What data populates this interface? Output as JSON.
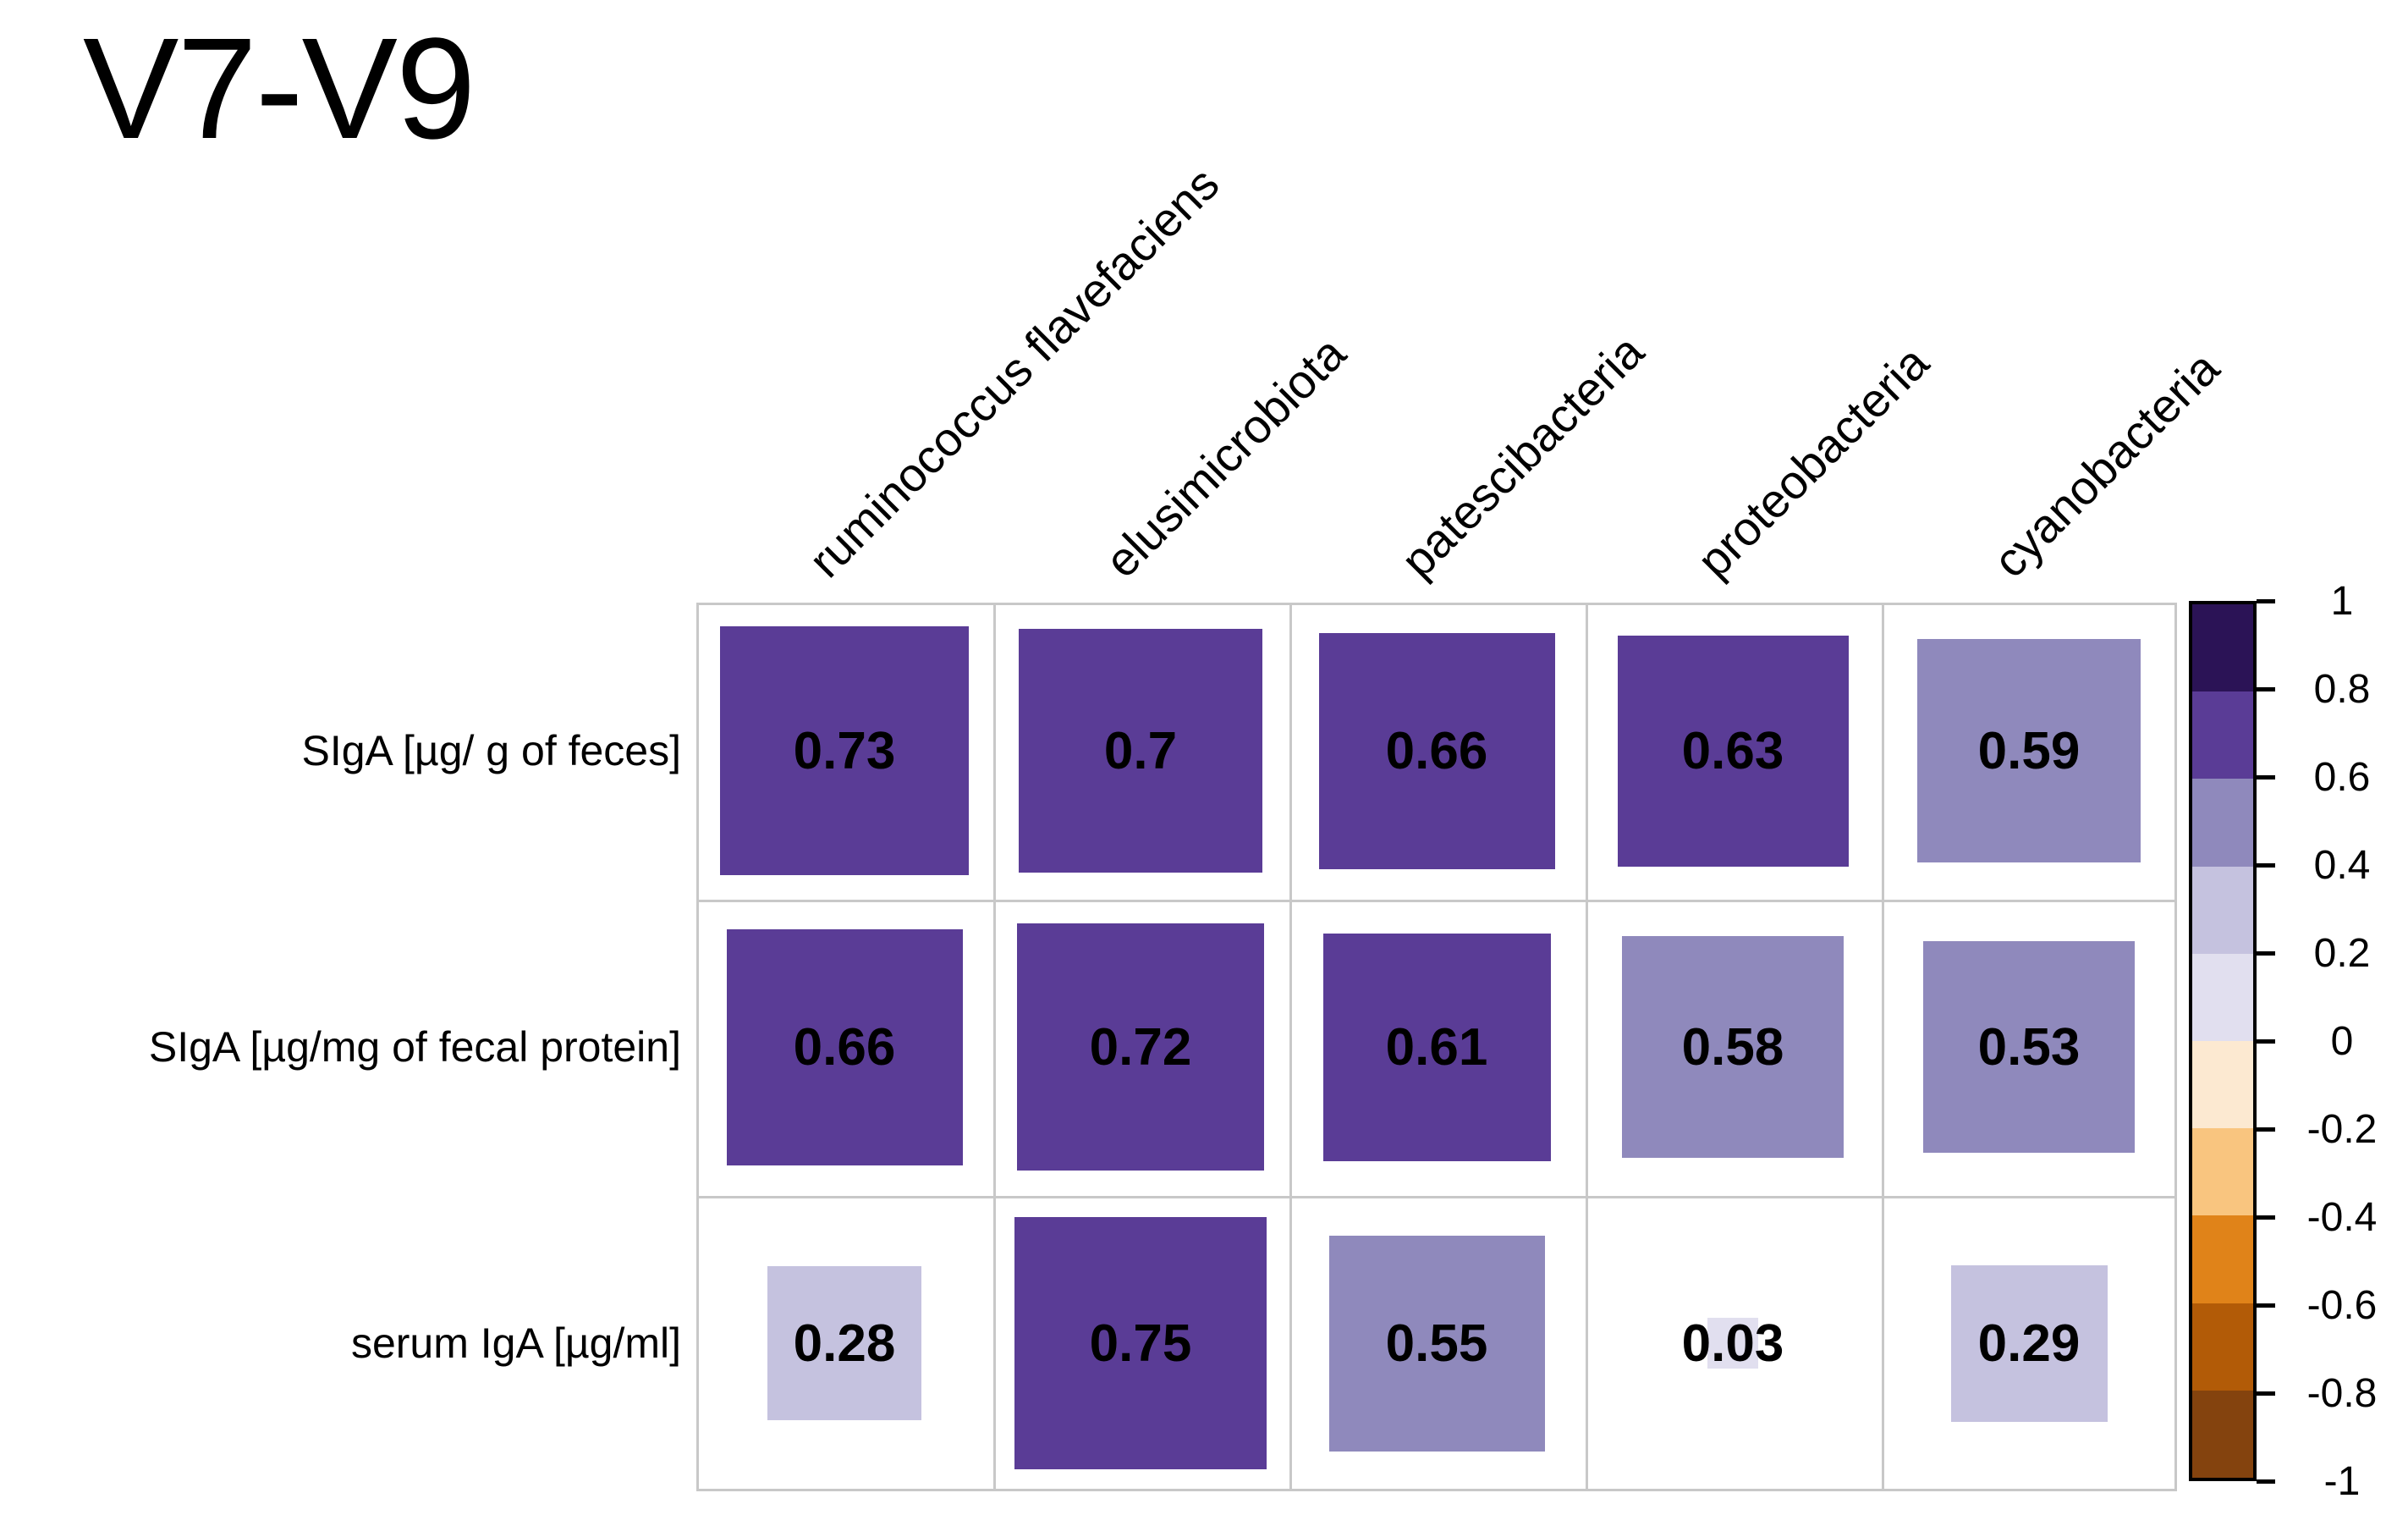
{
  "title": "V7-V9",
  "chart_data": {
    "type": "heatmap",
    "subtype": "correlation-matrix-squares",
    "title": "V7-V9",
    "rows": [
      "SIgA [µg/ g of feces]",
      "SIgA [µg/mg of fecal protein]",
      "serum IgA [µg/ml]"
    ],
    "columns": [
      "ruminococcus flavefaciens",
      "elusimicrobiota",
      "patescibacteria",
      "proteobacteria",
      "cyanobacteria"
    ],
    "values": [
      [
        0.73,
        0.7,
        0.66,
        0.63,
        0.59
      ],
      [
        0.66,
        0.72,
        0.61,
        0.58,
        0.53
      ],
      [
        0.28,
        0.75,
        0.55,
        0.03,
        0.29
      ]
    ],
    "value_labels": [
      [
        "0.73",
        "0.7",
        "0.66",
        "0.63",
        "0.59"
      ],
      [
        "0.66",
        "0.72",
        "0.61",
        "0.58",
        "0.53"
      ],
      [
        "0.28",
        "0.75",
        "0.55",
        "0.03",
        "0.29"
      ]
    ],
    "encoding": {
      "square_size": "side proportional to sqrt(|r|) of cell size",
      "square_color": "binned every 0.2 on purple-orange scale",
      "value_text": "black bold centered in cell"
    },
    "grid_line_color": "#c8c8c8",
    "background": "#ffffff",
    "text_color": "#000000",
    "legend_position": "right",
    "colorbar": {
      "range": [
        -1,
        1
      ],
      "tick_labels": [
        "1",
        "0.8",
        "0.6",
        "0.4",
        "0.2",
        "0",
        "-0.2",
        "-0.4",
        "-0.6",
        "-0.8",
        "-1"
      ],
      "bins_top_to_bottom": [
        "#2B1356",
        "#5A3C96",
        "#8F89BC",
        "#C5C2DF",
        "#E1DFEF",
        "#FCE9D1",
        "#F9C57F",
        "#E08319",
        "#B25B07",
        "#84430E"
      ]
    }
  }
}
